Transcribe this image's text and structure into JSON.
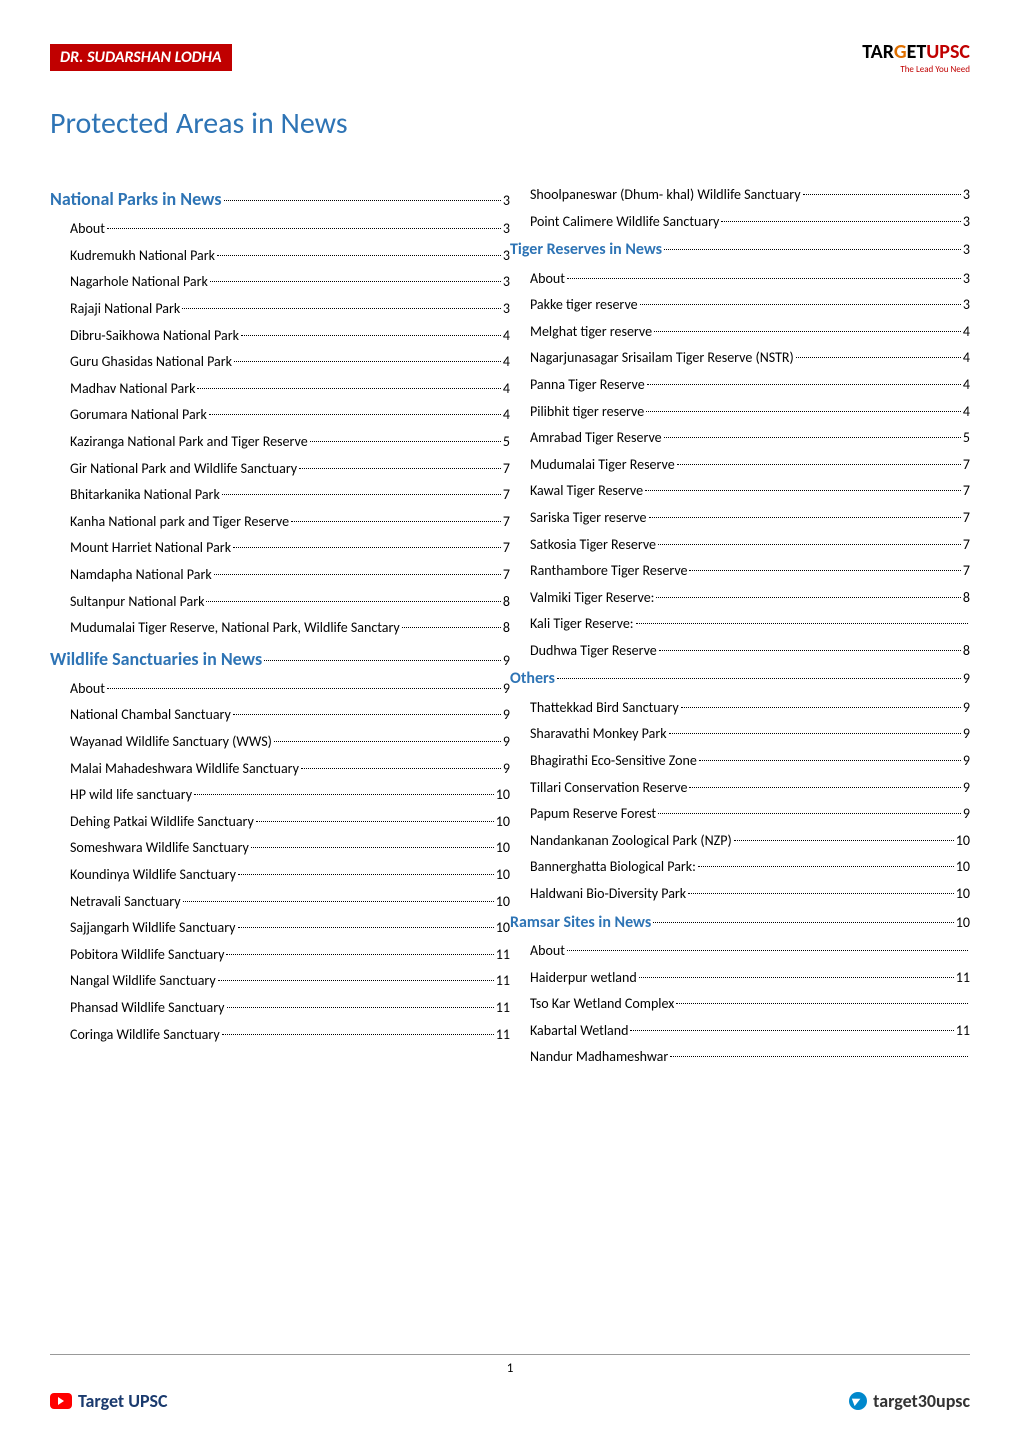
{
  "header": {
    "author_badge": "DR. SUDARSHAN LODHA",
    "logo_main_1": "TAR",
    "logo_main_accent": "G",
    "logo_main_2": "ET",
    "logo_main_upsc": "UPSC",
    "logo_tagline": "The Lead You Need"
  },
  "title": "Protected Areas in News",
  "toc_left": [
    {
      "label": "National Parks in News",
      "page": "3",
      "class": "toc-section-major",
      "indent": 0
    },
    {
      "label": "About",
      "page": "3",
      "indent": 1
    },
    {
      "label": "Kudremukh National Park",
      "page": "3",
      "indent": 1
    },
    {
      "label": "Nagarhole National Park",
      "page": "3",
      "indent": 1
    },
    {
      "label": "Rajaji National Park",
      "page": "3",
      "indent": 1
    },
    {
      "label": "Dibru-Saikhowa National Park",
      "page": "4",
      "indent": 1
    },
    {
      "label": "Guru Ghasidas National Park",
      "page": "4",
      "indent": 1
    },
    {
      "label": "Madhav National Park",
      "page": "4",
      "indent": 1
    },
    {
      "label": "Gorumara National Park",
      "page": "4",
      "indent": 1
    },
    {
      "label": "Kaziranga National Park and Tiger Reserve",
      "page": "5",
      "indent": 1
    },
    {
      "label": "Gir National Park and Wildlife Sanctuary",
      "page": "7",
      "indent": 1
    },
    {
      "label": "Bhitarkanika National Park",
      "page": "7",
      "indent": 1
    },
    {
      "label": "Kanha National park and Tiger Reserve",
      "page": "7",
      "indent": 1
    },
    {
      "label": "Mount Harriet National Park",
      "page": "7",
      "indent": 1
    },
    {
      "label": "Namdapha National Park",
      "page": "7",
      "indent": 1
    },
    {
      "label": "Sultanpur National Park",
      "page": "8",
      "indent": 1
    },
    {
      "label": "Mudumalai Tiger Reserve, National Park, Wildlife Sanctary",
      "page": "8",
      "indent": 1,
      "wrap": true
    },
    {
      "label": "Wildlife Sanctuaries in News",
      "page": "9",
      "class": "toc-section-major",
      "indent": 0
    },
    {
      "label": "About",
      "page": "9",
      "indent": 1
    },
    {
      "label": "National Chambal Sanctuary",
      "page": "9",
      "indent": 1
    },
    {
      "label": "Wayanad Wildlife Sanctuary (WWS)",
      "page": "9",
      "indent": 1
    },
    {
      "label": "Malai Mahadeshwara Wildlife Sanctuary",
      "page": "9",
      "indent": 1
    },
    {
      "label": "HP wild life sanctuary",
      "page": "10",
      "indent": 1
    },
    {
      "label": "Dehing Patkai Wildlife Sanctuary",
      "page": "10",
      "indent": 1
    },
    {
      "label": "Someshwara Wildlife Sanctuary",
      "page": "10",
      "indent": 1
    },
    {
      "label": "Koundinya Wildlife Sanctuary",
      "page": "10",
      "indent": 1
    },
    {
      "label": "Netravali Sanctuary",
      "page": "10",
      "indent": 1
    },
    {
      "label": "Sajjangarh Wildlife Sanctuary",
      "page": "10",
      "indent": 1
    },
    {
      "label": "Pobitora Wildlife Sanctuary",
      "page": "11",
      "indent": 1
    },
    {
      "label": "Nangal Wildlife Sanctuary",
      "page": "11",
      "indent": 1
    },
    {
      "label": "Phansad Wildlife Sanctuary",
      "page": "11",
      "indent": 1
    },
    {
      "label": "Coringa Wildlife Sanctuary",
      "page": "11",
      "indent": 1
    }
  ],
  "toc_right": [
    {
      "label": "Shoolpaneswar (Dhum- khal) Wildlife Sanctuary",
      "page": "3",
      "indent": 1
    },
    {
      "label": "Point Calimere Wildlife Sanctuary",
      "page": "3",
      "indent": 1
    },
    {
      "label": "Tiger Reserves in News",
      "page": "3",
      "class": "toc-section-header",
      "indent": 0
    },
    {
      "label": "About",
      "page": "3",
      "indent": 1
    },
    {
      "label": "Pakke tiger reserve",
      "page": "3",
      "indent": 1
    },
    {
      "label": "Melghat tiger reserve",
      "page": "4",
      "indent": 1
    },
    {
      "label": "Nagarjunasagar Srisailam Tiger Reserve (NSTR)",
      "page": "4",
      "indent": 1
    },
    {
      "label": "Panna Tiger Reserve",
      "page": "4",
      "indent": 1
    },
    {
      "label": "Pilibhit tiger reserve",
      "page": "4",
      "indent": 1
    },
    {
      "label": "Amrabad Tiger Reserve",
      "page": "5",
      "indent": 1
    },
    {
      "label": "Mudumalai Tiger Reserve",
      "page": "7",
      "indent": 1
    },
    {
      "label": "Kawal Tiger Reserve",
      "page": "7",
      "indent": 1
    },
    {
      "label": "Sariska Tiger reserve",
      "page": "7",
      "indent": 1
    },
    {
      "label": "Satkosia Tiger Reserve",
      "page": "7",
      "indent": 1
    },
    {
      "label": "Ranthambore Tiger Reserve",
      "page": "7",
      "indent": 1
    },
    {
      "label": "Valmiki Tiger Reserve:",
      "page": "8",
      "indent": 1
    },
    {
      "label": "Kali Tiger Reserve:",
      "page": "",
      "indent": 1
    },
    {
      "label": "Dudhwa Tiger Reserve",
      "page": "8",
      "indent": 1
    },
    {
      "label": "Others",
      "page": "9",
      "class": "toc-section-header",
      "indent": 0
    },
    {
      "label": "Thattekkad Bird Sanctuary",
      "page": "9",
      "indent": 1
    },
    {
      "label": "Sharavathi Monkey Park",
      "page": "9",
      "indent": 1
    },
    {
      "label": "Bhagirathi Eco-Sensitive Zone",
      "page": "9",
      "indent": 1
    },
    {
      "label": "Tillari Conservation Reserve",
      "page": "9",
      "indent": 1
    },
    {
      "label": "Papum Reserve Forest",
      "page": "9",
      "indent": 1
    },
    {
      "label": "Nandankanan Zoological Park (NZP)",
      "page": "10",
      "indent": 1
    },
    {
      "label": "Bannerghatta Biological Park:",
      "page": "10",
      "indent": 1
    },
    {
      "label": "Haldwani Bio-Diversity Park",
      "page": "10",
      "indent": 1
    },
    {
      "label": "Ramsar Sites in News",
      "page": "10",
      "class": "toc-section-header",
      "indent": 0
    },
    {
      "label": "About",
      "page": "",
      "indent": 1
    },
    {
      "label": "Haiderpur wetland",
      "page": "11",
      "indent": 1
    },
    {
      "label": "Tso Kar Wetland Complex",
      "page": "",
      "indent": 1
    },
    {
      "label": "Kabartal Wetland",
      "page": "11",
      "indent": 1
    },
    {
      "label": "Nandur Madhameshwar",
      "page": "",
      "indent": 1
    }
  ],
  "footer": {
    "page_number": "1",
    "left_label": "Target UPSC",
    "right_label": "target30upsc"
  },
  "colors": {
    "badge_bg": "#c00000",
    "heading_blue": "#2e74b5",
    "text": "#000000",
    "accent_orange": "#e07000",
    "footer_left": "#1a3a6e"
  }
}
